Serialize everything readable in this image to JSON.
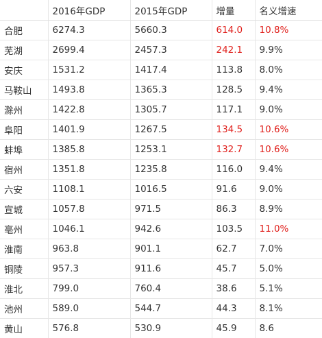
{
  "table": {
    "columns": [
      "",
      "2016年GDP",
      "2015年GDP",
      "增量",
      "名义增速"
    ],
    "highlight_color": "#e0201c",
    "rows": [
      {
        "city": "合肥",
        "gdp2016": "6274.3",
        "gdp2015": "5660.3",
        "increase": "614.0",
        "growth": "10.8%",
        "increase_red": true,
        "growth_red": true
      },
      {
        "city": "芜湖",
        "gdp2016": "2699.4",
        "gdp2015": "2457.3",
        "increase": "242.1",
        "growth": "9.9%",
        "increase_red": true,
        "growth_red": false
      },
      {
        "city": "安庆",
        "gdp2016": "1531.2",
        "gdp2015": "1417.4",
        "increase": "113.8",
        "growth": "8.0%",
        "increase_red": false,
        "growth_red": false
      },
      {
        "city": "马鞍山",
        "gdp2016": "1493.8",
        "gdp2015": "1365.3",
        "increase": "128.5",
        "growth": "9.4%",
        "increase_red": false,
        "growth_red": false
      },
      {
        "city": "滁州",
        "gdp2016": "1422.8",
        "gdp2015": "1305.7",
        "increase": "117.1",
        "growth": "9.0%",
        "increase_red": false,
        "growth_red": false
      },
      {
        "city": "阜阳",
        "gdp2016": "1401.9",
        "gdp2015": "1267.5",
        "increase": "134.5",
        "growth": "10.6%",
        "increase_red": true,
        "growth_red": true
      },
      {
        "city": "蚌埠",
        "gdp2016": "1385.8",
        "gdp2015": "1253.1",
        "increase": "132.7",
        "growth": "10.6%",
        "increase_red": true,
        "growth_red": true
      },
      {
        "city": "宿州",
        "gdp2016": "1351.8",
        "gdp2015": "1235.8",
        "increase": "116.0",
        "growth": "9.4%",
        "increase_red": false,
        "growth_red": false
      },
      {
        "city": "六安",
        "gdp2016": "1108.1",
        "gdp2015": "1016.5",
        "increase": "91.6",
        "growth": "9.0%",
        "increase_red": false,
        "growth_red": false
      },
      {
        "city": "宣城",
        "gdp2016": "1057.8",
        "gdp2015": "971.5",
        "increase": "86.3",
        "growth": "8.9%",
        "increase_red": false,
        "growth_red": false
      },
      {
        "city": "亳州",
        "gdp2016": "1046.1",
        "gdp2015": "942.6",
        "increase": "103.5",
        "growth": "11.0%",
        "increase_red": false,
        "growth_red": true
      },
      {
        "city": "淮南",
        "gdp2016": "963.8",
        "gdp2015": "901.1",
        "increase": "62.7",
        "growth": "7.0%",
        "increase_red": false,
        "growth_red": false
      },
      {
        "city": "铜陵",
        "gdp2016": "957.3",
        "gdp2015": "911.6",
        "increase": "45.7",
        "growth": "5.0%",
        "increase_red": false,
        "growth_red": false
      },
      {
        "city": "淮北",
        "gdp2016": "799.0",
        "gdp2015": "760.4",
        "increase": "38.6",
        "growth": "5.1%",
        "increase_red": false,
        "growth_red": false
      },
      {
        "city": "池州",
        "gdp2016": "589.0",
        "gdp2015": "544.7",
        "increase": "44.3",
        "growth": "8.1%",
        "increase_red": false,
        "growth_red": false
      },
      {
        "city": "黄山",
        "gdp2016": "576.8",
        "gdp2015": "530.9",
        "increase": "45.9",
        "growth": "8.6",
        "increase_red": false,
        "growth_red": false
      }
    ]
  }
}
